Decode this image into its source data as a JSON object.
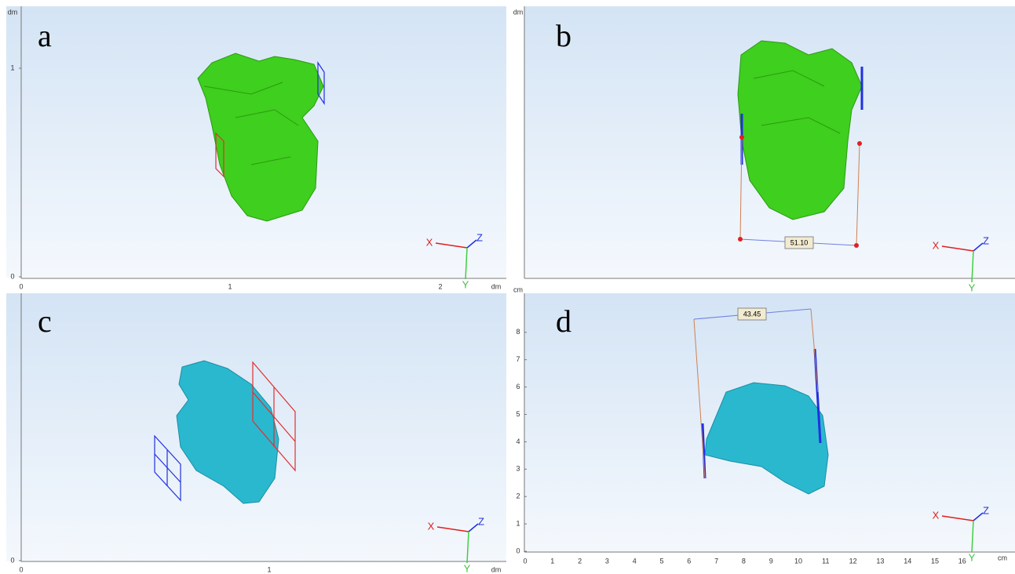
{
  "panels": [
    {
      "label": "a",
      "y_unit": "dm",
      "y_ticks": [
        "1",
        "0"
      ],
      "x_ticks": [
        "0",
        "1",
        "2"
      ],
      "x_unit": "dm",
      "triad": [
        "X",
        "Z",
        "Y"
      ]
    },
    {
      "label": "b",
      "y_unit": "dm",
      "measurement": "51.10",
      "triad": [
        "X",
        "Z",
        "Y"
      ]
    },
    {
      "label": "c",
      "y_ticks": [
        "0"
      ],
      "x_ticks": [
        "0",
        "1"
      ],
      "x_unit": "dm",
      "triad": [
        "X",
        "Z",
        "Y"
      ]
    },
    {
      "label": "d",
      "y_unit": "cm",
      "y_ticks": [
        "0",
        "1",
        "2",
        "3",
        "4",
        "5",
        "6",
        "7",
        "8"
      ],
      "x_ticks": [
        "0",
        "1",
        "2",
        "3",
        "4",
        "5",
        "6",
        "7",
        "8",
        "9",
        "10",
        "11",
        "12",
        "13",
        "14",
        "15",
        "16"
      ],
      "x_unit": "cm",
      "measurement": "43.45",
      "triad": [
        "X",
        "Z",
        "Y"
      ]
    }
  ]
}
